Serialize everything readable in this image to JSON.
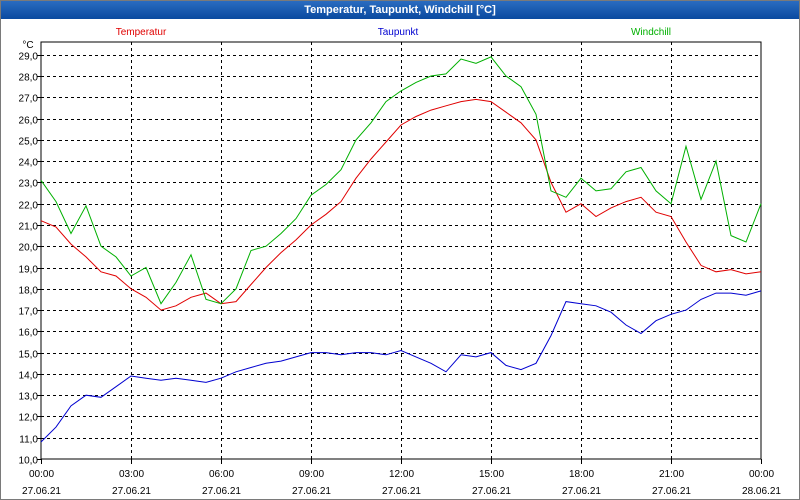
{
  "window": {
    "title": "Temperatur, Taupunkt, Windchill [°C]"
  },
  "chart_data": {
    "type": "line",
    "title": "Temperatur, Taupunkt, Windchill [°C]",
    "ylabel": "°C",
    "ylim": [
      10.0,
      29.6
    ],
    "xlim": [
      0,
      24
    ],
    "grid": true,
    "y_ticks": [
      "10,0",
      "11,0",
      "12,0",
      "13,0",
      "14,0",
      "15,0",
      "16,0",
      "17,0",
      "18,0",
      "19,0",
      "20,0",
      "21,0",
      "22,0",
      "23,0",
      "24,0",
      "25,0",
      "26,0",
      "27,0",
      "28,0",
      "29,0"
    ],
    "x_ticks": [
      {
        "time": "00:00",
        "date": "27.06.21"
      },
      {
        "time": "03:00",
        "date": "27.06.21"
      },
      {
        "time": "06:00",
        "date": "27.06.21"
      },
      {
        "time": "09:00",
        "date": "27.06.21"
      },
      {
        "time": "12:00",
        "date": "27.06.21"
      },
      {
        "time": "15:00",
        "date": "27.06.21"
      },
      {
        "time": "18:00",
        "date": "27.06.21"
      },
      {
        "time": "21:00",
        "date": "27.06.21"
      },
      {
        "time": "00:00",
        "date": "28.06.21"
      }
    ],
    "series": [
      {
        "name": "Temperatur",
        "color": "#e00000",
        "x": [
          0,
          0.5,
          1,
          1.5,
          2,
          2.5,
          3,
          3.5,
          4,
          4.5,
          5,
          5.5,
          6,
          6.5,
          7,
          7.5,
          8,
          8.5,
          9,
          9.5,
          10,
          10.5,
          11,
          11.5,
          12,
          12.5,
          13,
          13.5,
          14,
          14.5,
          15,
          15.5,
          16,
          16.5,
          17,
          17.5,
          18,
          18.5,
          19,
          19.5,
          20,
          20.5,
          21,
          21.5,
          22,
          22.5,
          23,
          23.5,
          24
        ],
        "values": [
          21.2,
          20.9,
          20.1,
          19.5,
          18.8,
          18.6,
          18.0,
          17.6,
          17.0,
          17.2,
          17.6,
          17.8,
          17.3,
          17.4,
          18.2,
          19.0,
          19.7,
          20.3,
          21.0,
          21.5,
          22.1,
          23.2,
          24.1,
          24.9,
          25.7,
          26.1,
          26.4,
          26.6,
          26.8,
          26.9,
          26.8,
          26.3,
          25.8,
          25.0,
          23.0,
          21.6,
          22.0,
          21.4,
          21.8,
          22.1,
          22.3,
          21.6,
          21.4,
          20.2,
          19.1,
          18.8,
          18.9,
          18.7,
          18.8
        ]
      },
      {
        "name": "Taupunkt",
        "color": "#0000d0",
        "x": [
          0,
          0.5,
          1,
          1.5,
          2,
          2.5,
          3,
          3.5,
          4,
          4.5,
          5,
          5.5,
          6,
          6.5,
          7,
          7.5,
          8,
          8.5,
          9,
          9.5,
          10,
          10.5,
          11,
          11.5,
          12,
          12.5,
          13,
          13.5,
          14,
          14.5,
          15,
          15.5,
          16,
          16.5,
          17,
          17.5,
          18,
          18.5,
          19,
          19.5,
          20,
          20.5,
          21,
          21.5,
          22,
          22.5,
          23,
          23.5,
          24
        ],
        "values": [
          10.8,
          11.5,
          12.5,
          13.0,
          12.9,
          13.4,
          13.9,
          13.8,
          13.7,
          13.8,
          13.7,
          13.6,
          13.8,
          14.1,
          14.3,
          14.5,
          14.6,
          14.8,
          15.0,
          15.0,
          14.9,
          15.0,
          15.0,
          14.9,
          15.1,
          14.8,
          14.5,
          14.1,
          14.9,
          14.8,
          15.0,
          14.4,
          14.2,
          14.5,
          15.8,
          17.4,
          17.3,
          17.2,
          16.9,
          16.3,
          15.9,
          16.5,
          16.8,
          17.0,
          17.5,
          17.8,
          17.8,
          17.7,
          17.9
        ]
      },
      {
        "name": "Windchill",
        "color": "#00b000",
        "x": [
          0,
          0.5,
          1,
          1.5,
          2,
          2.5,
          3,
          3.5,
          4,
          4.5,
          5,
          5.5,
          6,
          6.5,
          7,
          7.5,
          8,
          8.5,
          9,
          9.5,
          10,
          10.5,
          11,
          11.5,
          12,
          12.5,
          13,
          13.5,
          14,
          14.5,
          15,
          15.5,
          16,
          16.5,
          17,
          17.5,
          18,
          18.5,
          19,
          19.5,
          20,
          20.5,
          21,
          21.5,
          22,
          22.5,
          23,
          23.5,
          24
        ],
        "values": [
          23.1,
          22.1,
          20.6,
          21.9,
          20.0,
          19.5,
          18.6,
          19.0,
          17.3,
          18.3,
          19.6,
          17.5,
          17.3,
          18.0,
          19.8,
          20.0,
          20.6,
          21.3,
          22.4,
          22.9,
          23.6,
          25.0,
          25.8,
          26.8,
          27.3,
          27.7,
          28.0,
          28.1,
          28.8,
          28.6,
          28.9,
          28.0,
          27.5,
          26.2,
          22.6,
          22.3,
          23.2,
          22.6,
          22.7,
          23.5,
          23.7,
          22.6,
          22.0,
          24.7,
          22.2,
          24.0,
          20.5,
          20.2,
          22.0
        ]
      }
    ]
  }
}
